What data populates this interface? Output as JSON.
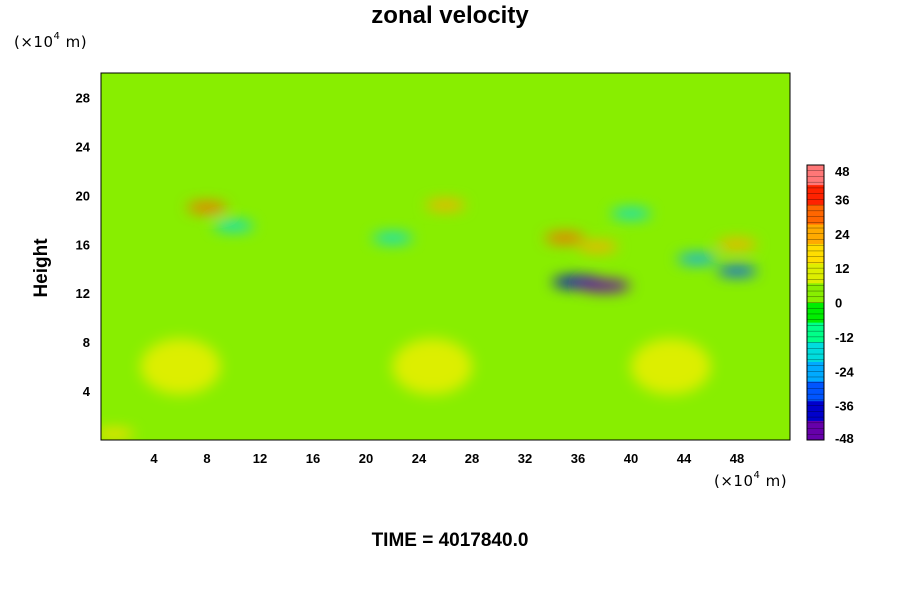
{
  "chart_data": {
    "type": "heatmap",
    "title": "zonal velocity",
    "ylabel": "Height",
    "xlabel": "",
    "x_unit": {
      "prefix": "(×10",
      "exp": "4",
      "suffix": " m)"
    },
    "y_unit": {
      "prefix": "(×10",
      "exp": "4",
      "suffix": " m)"
    },
    "xlim": [
      0,
      52
    ],
    "ylim": [
      0,
      30
    ],
    "x_ticks": [
      4,
      8,
      12,
      16,
      20,
      24,
      28,
      32,
      36,
      40,
      44,
      48
    ],
    "y_ticks": [
      4,
      8,
      12,
      16,
      20,
      24,
      28
    ],
    "colorbar": {
      "range": [
        -48,
        48
      ],
      "ticks": [
        48,
        36,
        24,
        12,
        0,
        -12,
        -24,
        -36,
        -48
      ],
      "colors": [
        "#6600aa",
        "#0000cc",
        "#0055ff",
        "#00aaff",
        "#00dddd",
        "#00ff88",
        "#00ee00",
        "#88ee00",
        "#ddee00",
        "#ffdd00",
        "#ffaa00",
        "#ff6600",
        "#ff2200",
        "#ff7777"
      ]
    },
    "background_value": 0,
    "features": [
      {
        "x": 8,
        "y": 19.0,
        "value": 28
      },
      {
        "x": 26,
        "y": 19.2,
        "value": 22
      },
      {
        "x": 35,
        "y": 16.5,
        "value": 30
      },
      {
        "x": 37.5,
        "y": 15.8,
        "value": 24
      },
      {
        "x": 48,
        "y": 16.0,
        "value": 26
      },
      {
        "x": 36,
        "y": 12.9,
        "value": -40
      },
      {
        "x": 38,
        "y": 12.6,
        "value": -44
      },
      {
        "x": 48,
        "y": 13.8,
        "value": -30
      },
      {
        "x": 45,
        "y": 14.8,
        "value": -24
      },
      {
        "x": 22,
        "y": 16.5,
        "value": -16
      },
      {
        "x": 10,
        "y": 17.5,
        "value": -14
      },
      {
        "x": 40,
        "y": 18.5,
        "value": -18
      },
      {
        "x": 6,
        "y": 6.0,
        "value": 12
      },
      {
        "x": 25,
        "y": 6.0,
        "value": 12
      },
      {
        "x": 43,
        "y": 6.0,
        "value": 10
      },
      {
        "x": 1,
        "y": 0.5,
        "value": 18
      }
    ]
  },
  "footer": {
    "time_label": "TIME = 4017840.0"
  }
}
